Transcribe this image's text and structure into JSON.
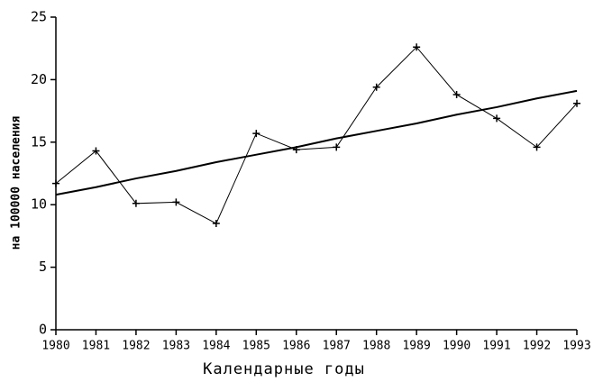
{
  "chart_data": {
    "type": "line",
    "x_label": "Календарные годы",
    "y_label": "на 100000 населения",
    "x": [
      1980,
      1981,
      1982,
      1983,
      1984,
      1985,
      1986,
      1987,
      1988,
      1989,
      1990,
      1991,
      1992,
      1993
    ],
    "series": [
      {
        "color": "#000000",
        "marker": "plus",
        "values": [
          11.7,
          14.3,
          10.1,
          10.2,
          8.5,
          15.7,
          14.4,
          14.6,
          19.4,
          22.6,
          18.8,
          16.9,
          14.6,
          18.1
        ]
      },
      {
        "color": "#000000",
        "marker": "none",
        "values": [
          10.8,
          11.4,
          12.1,
          12.7,
          13.4,
          14.0,
          14.6,
          15.3,
          15.9,
          16.5,
          17.2,
          17.8,
          18.5,
          19.1
        ]
      }
    ],
    "xlim": [
      1980,
      1993
    ],
    "xticks": [
      1980,
      1981,
      1982,
      1983,
      1984,
      1985,
      1986,
      1987,
      1988,
      1989,
      1990,
      1991,
      1992,
      1993
    ],
    "ylim": [
      0,
      25
    ],
    "yticks": [
      0,
      5,
      10,
      15,
      20,
      25
    ],
    "grid": false
  }
}
